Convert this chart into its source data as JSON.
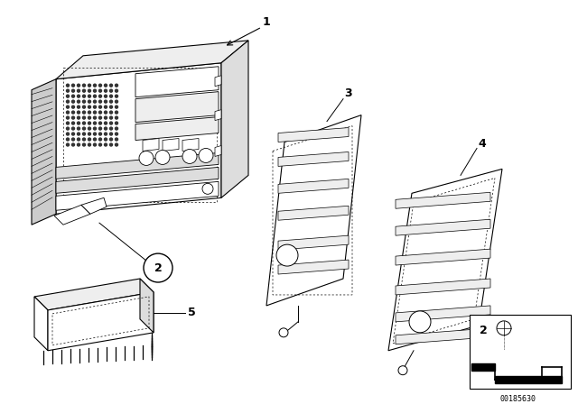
{
  "bg_color": "#ffffff",
  "line_color": "#000000",
  "part_number": "00185630",
  "face_color": "#ffffff",
  "shade_light": "#eeeeee",
  "shade_mid": "#dddddd",
  "shade_dark": "#cccccc",
  "dot_color": "#333333"
}
